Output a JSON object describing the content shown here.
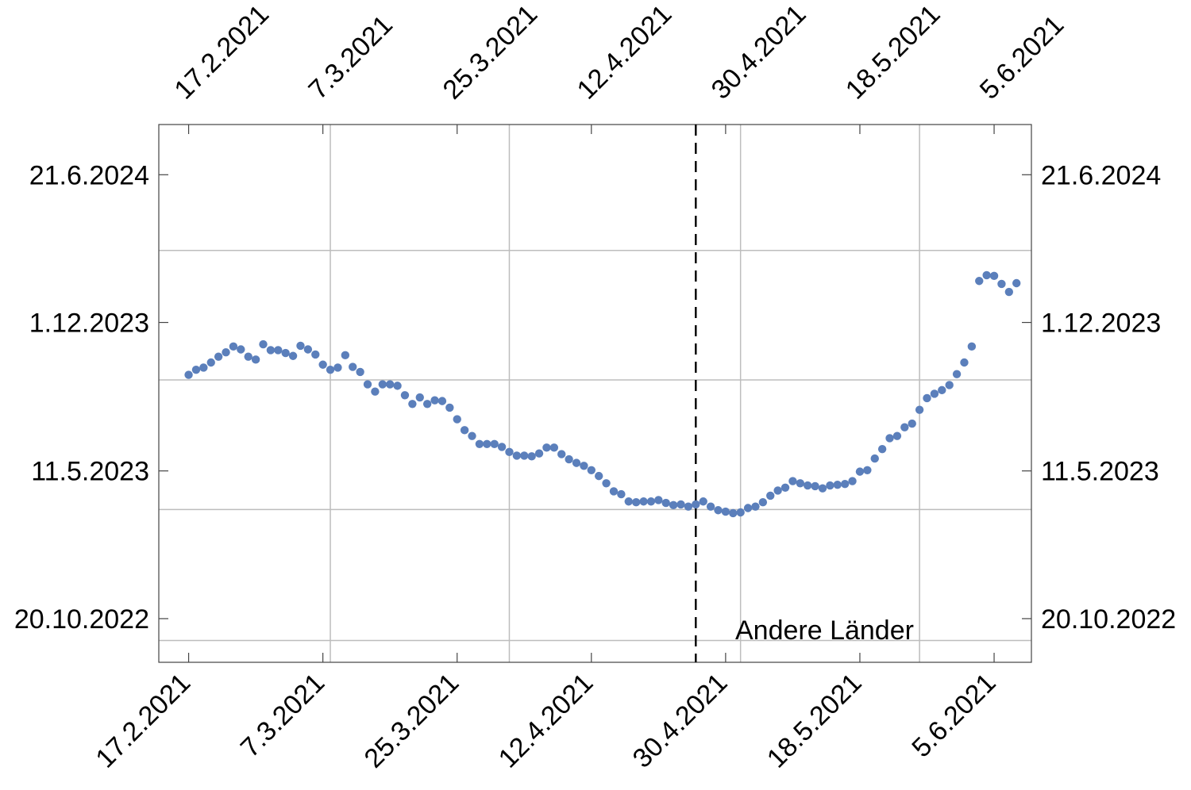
{
  "chart_data": {
    "type": "scatter",
    "title": "",
    "xlabel": "",
    "ylabel": "",
    "x_ticks": [
      "17.2.2021",
      "7.3.2021",
      "25.3.2021",
      "12.4.2021",
      "30.4.2021",
      "18.5.2021",
      "5.6.2021"
    ],
    "y_ticks": [
      "20.10.2022",
      "11.5.2023",
      "1.12.2023",
      "21.6.2024"
    ],
    "xlim": [
      "2021-02-13",
      "2021-06-10"
    ],
    "ylim": [
      "2022-08-21",
      "2024-08-29"
    ],
    "grid": true,
    "vertical_line": {
      "x": "2021-04-26",
      "style": "dashed"
    },
    "annotation": "Andere Länder",
    "color": "#5b7fbb",
    "series": [
      {
        "points": [
          [
            "2021-02-17",
            "2023-09-20"
          ],
          [
            "2021-02-18",
            "2023-09-27"
          ],
          [
            "2021-02-19",
            "2023-09-30"
          ],
          [
            "2021-02-20",
            "2023-10-07"
          ],
          [
            "2021-02-21",
            "2023-10-15"
          ],
          [
            "2021-02-22",
            "2023-10-21"
          ],
          [
            "2021-02-23",
            "2023-10-29"
          ],
          [
            "2021-02-24",
            "2023-10-25"
          ],
          [
            "2021-02-25",
            "2023-10-15"
          ],
          [
            "2021-02-26",
            "2023-10-11"
          ],
          [
            "2021-02-27",
            "2023-11-01"
          ],
          [
            "2021-02-28",
            "2023-10-24"
          ],
          [
            "2021-03-01",
            "2023-10-24"
          ],
          [
            "2021-03-02",
            "2023-10-20"
          ],
          [
            "2021-03-03",
            "2023-10-16"
          ],
          [
            "2021-03-04",
            "2023-10-30"
          ],
          [
            "2021-03-05",
            "2023-10-25"
          ],
          [
            "2021-03-06",
            "2023-10-18"
          ],
          [
            "2021-03-07",
            "2023-10-04"
          ],
          [
            "2021-03-08",
            "2023-09-27"
          ],
          [
            "2021-03-09",
            "2023-09-30"
          ],
          [
            "2021-03-10",
            "2023-10-17"
          ],
          [
            "2021-03-11",
            "2023-10-01"
          ],
          [
            "2021-03-12",
            "2023-09-24"
          ],
          [
            "2021-03-13",
            "2023-09-07"
          ],
          [
            "2021-03-14",
            "2023-08-28"
          ],
          [
            "2021-03-15",
            "2023-09-07"
          ],
          [
            "2021-03-16",
            "2023-09-07"
          ],
          [
            "2021-03-17",
            "2023-09-05"
          ],
          [
            "2021-03-18",
            "2023-08-23"
          ],
          [
            "2021-03-19",
            "2023-08-11"
          ],
          [
            "2021-03-20",
            "2023-08-20"
          ],
          [
            "2021-03-21",
            "2023-08-11"
          ],
          [
            "2021-03-22",
            "2023-08-16"
          ],
          [
            "2021-03-23",
            "2023-08-15"
          ],
          [
            "2021-03-24",
            "2023-08-06"
          ],
          [
            "2021-03-25",
            "2023-07-21"
          ],
          [
            "2021-03-26",
            "2023-07-06"
          ],
          [
            "2021-03-27",
            "2023-06-28"
          ],
          [
            "2021-03-28",
            "2023-06-17"
          ],
          [
            "2021-03-29",
            "2023-06-17"
          ],
          [
            "2021-03-30",
            "2023-06-17"
          ],
          [
            "2021-03-31",
            "2023-06-13"
          ],
          [
            "2021-04-01",
            "2023-06-06"
          ],
          [
            "2021-04-02",
            "2023-06-01"
          ],
          [
            "2021-04-03",
            "2023-06-01"
          ],
          [
            "2021-04-04",
            "2023-05-31"
          ],
          [
            "2021-04-05",
            "2023-06-04"
          ],
          [
            "2021-04-06",
            "2023-06-12"
          ],
          [
            "2021-04-07",
            "2023-06-12"
          ],
          [
            "2021-04-08",
            "2023-06-03"
          ],
          [
            "2021-04-09",
            "2023-05-27"
          ],
          [
            "2021-04-10",
            "2023-05-22"
          ],
          [
            "2021-04-11",
            "2023-05-18"
          ],
          [
            "2021-04-12",
            "2023-05-12"
          ],
          [
            "2021-04-13",
            "2023-05-04"
          ],
          [
            "2021-04-14",
            "2023-04-24"
          ],
          [
            "2021-04-15",
            "2023-04-13"
          ],
          [
            "2021-04-16",
            "2023-04-09"
          ],
          [
            "2021-04-17",
            "2023-03-30"
          ],
          [
            "2021-04-18",
            "2023-03-29"
          ],
          [
            "2021-04-19",
            "2023-03-30"
          ],
          [
            "2021-04-20",
            "2023-03-30"
          ],
          [
            "2021-04-21",
            "2023-04-01"
          ],
          [
            "2021-04-22",
            "2023-03-28"
          ],
          [
            "2021-04-23",
            "2023-03-25"
          ],
          [
            "2021-04-24",
            "2023-03-26"
          ],
          [
            "2021-04-25",
            "2023-03-23"
          ],
          [
            "2021-04-26",
            "2023-03-26"
          ],
          [
            "2021-04-27",
            "2023-03-30"
          ],
          [
            "2021-04-28",
            "2023-03-23"
          ],
          [
            "2021-04-29",
            "2023-03-18"
          ],
          [
            "2021-04-30",
            "2023-03-16"
          ],
          [
            "2021-05-01",
            "2023-03-14"
          ],
          [
            "2021-05-02",
            "2023-03-15"
          ],
          [
            "2021-05-03",
            "2023-03-21"
          ],
          [
            "2021-05-04",
            "2023-03-23"
          ],
          [
            "2021-05-05",
            "2023-03-29"
          ],
          [
            "2021-05-06",
            "2023-04-07"
          ],
          [
            "2021-05-07",
            "2023-04-14"
          ],
          [
            "2021-05-08",
            "2023-04-18"
          ],
          [
            "2021-05-09",
            "2023-04-27"
          ],
          [
            "2021-05-10",
            "2023-04-24"
          ],
          [
            "2021-05-11",
            "2023-04-21"
          ],
          [
            "2021-05-12",
            "2023-04-20"
          ],
          [
            "2021-05-13",
            "2023-04-17"
          ],
          [
            "2021-05-14",
            "2023-04-21"
          ],
          [
            "2021-05-15",
            "2023-04-22"
          ],
          [
            "2021-05-16",
            "2023-04-23"
          ],
          [
            "2021-05-17",
            "2023-04-27"
          ],
          [
            "2021-05-18",
            "2023-05-10"
          ],
          [
            "2021-05-19",
            "2023-05-12"
          ],
          [
            "2021-05-20",
            "2023-05-28"
          ],
          [
            "2021-05-21",
            "2023-06-10"
          ],
          [
            "2021-05-22",
            "2023-06-25"
          ],
          [
            "2021-05-23",
            "2023-06-28"
          ],
          [
            "2021-05-24",
            "2023-07-10"
          ],
          [
            "2021-05-25",
            "2023-07-15"
          ],
          [
            "2021-05-26",
            "2023-08-03"
          ],
          [
            "2021-05-27",
            "2023-08-19"
          ],
          [
            "2021-05-28",
            "2023-08-25"
          ],
          [
            "2021-05-29",
            "2023-08-30"
          ],
          [
            "2021-05-30",
            "2023-09-06"
          ],
          [
            "2021-05-31",
            "2023-09-21"
          ],
          [
            "2021-06-01",
            "2023-10-07"
          ],
          [
            "2021-06-02",
            "2023-10-29"
          ],
          [
            "2021-06-03",
            "2024-01-27"
          ],
          [
            "2021-06-04",
            "2024-02-04"
          ],
          [
            "2021-06-05",
            "2024-02-03"
          ],
          [
            "2021-06-06",
            "2024-01-23"
          ],
          [
            "2021-06-07",
            "2024-01-12"
          ],
          [
            "2021-06-08",
            "2024-01-24"
          ]
        ]
      }
    ]
  }
}
